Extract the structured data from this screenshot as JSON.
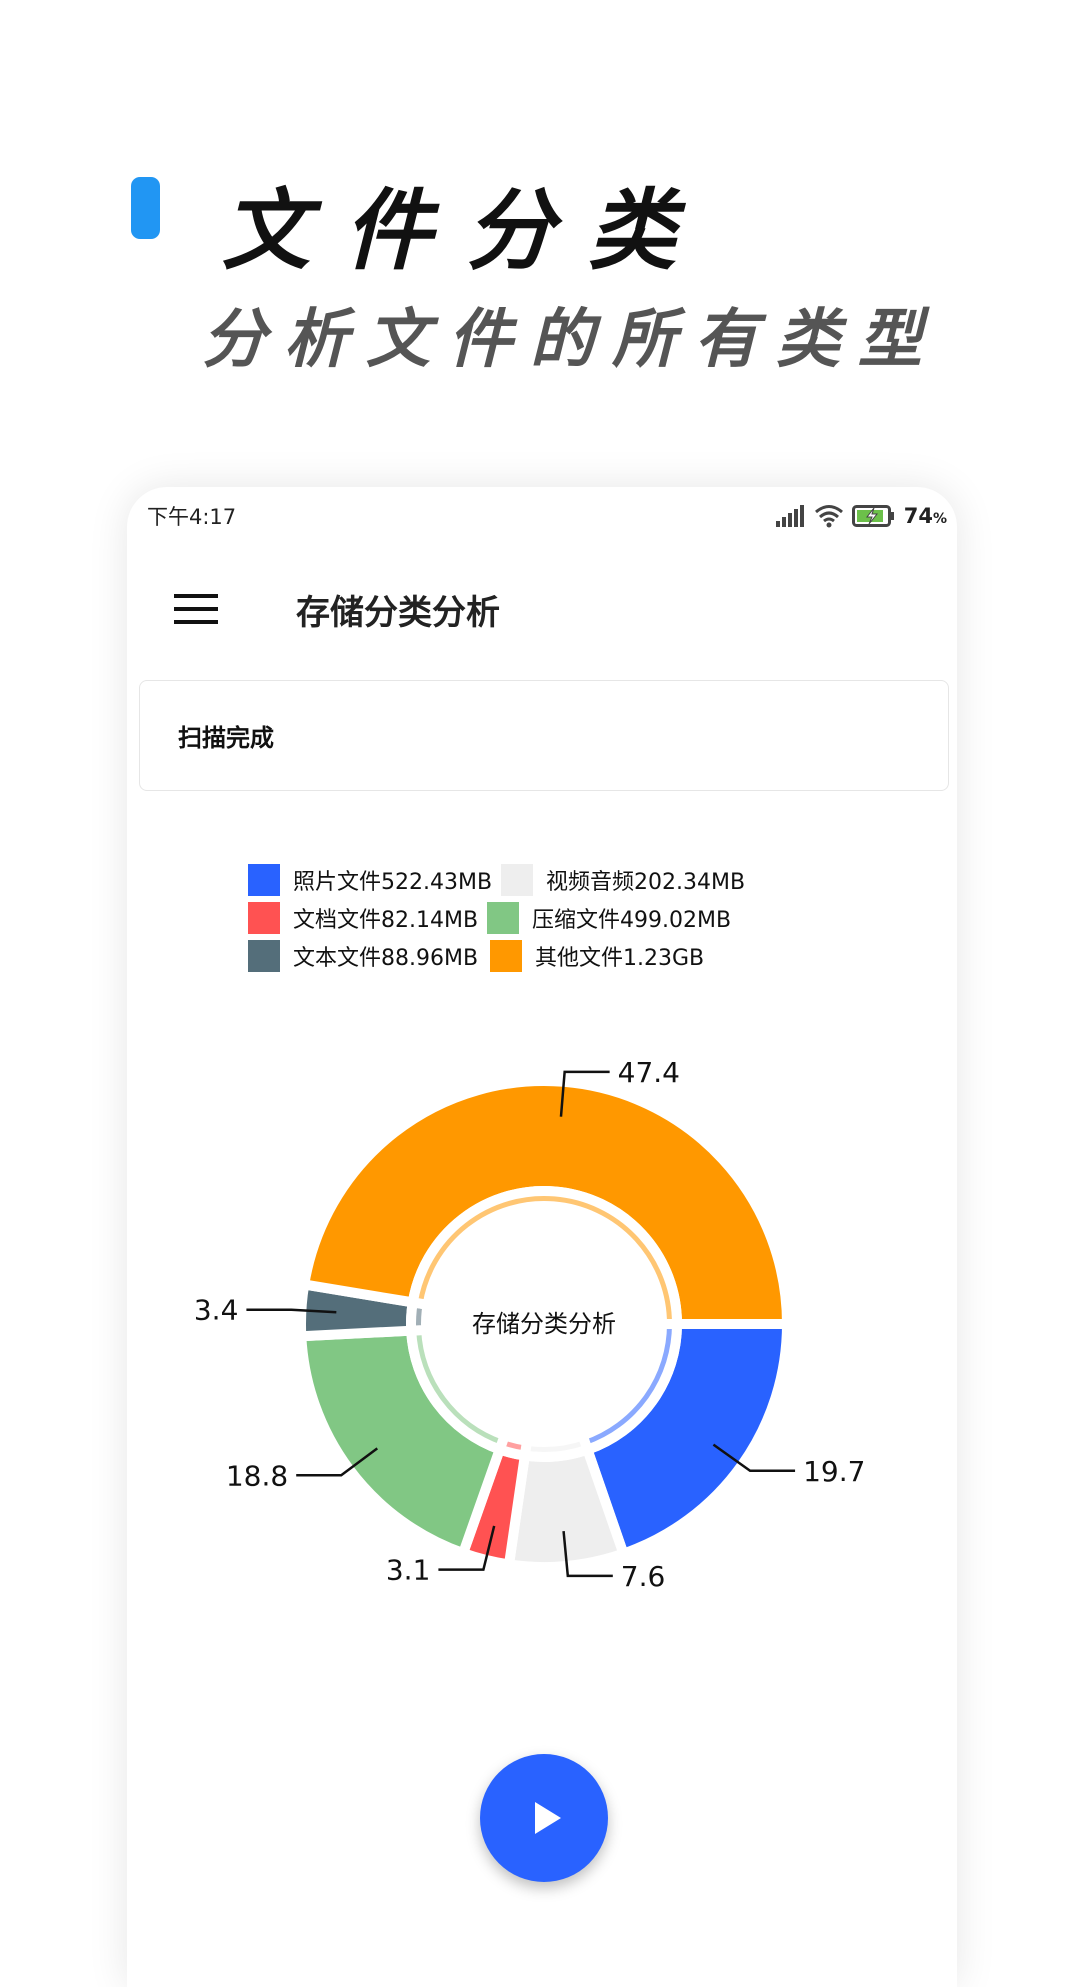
{
  "promo": {
    "title": "文件分类",
    "subtitle": "分析文件的所有类型",
    "accent_color": "#2196F3"
  },
  "status_bar": {
    "time": "下午4:17",
    "battery": "74",
    "battery_unit": "%"
  },
  "toolbar": {
    "title": "存储分类分析",
    "menu_icon": "hamburger-icon"
  },
  "scan_card": {
    "text": "扫描完成"
  },
  "legend": [
    {
      "label": "照片文件522.43MB",
      "color": "#2962FF"
    },
    {
      "label": "视频音频202.34MB",
      "color": "#EEEEEE"
    },
    {
      "label": "文档文件82.14MB",
      "color": "#FF5252"
    },
    {
      "label": "压缩文件499.02MB",
      "color": "#81C784"
    },
    {
      "label": "文本文件88.96MB",
      "color": "#546E7A"
    },
    {
      "label": "其他文件1.23GB",
      "color": "#FF9800"
    }
  ],
  "chart_data": {
    "type": "pie",
    "variant": "donut",
    "center_text": "存储分类分析",
    "categories": [
      "照片文件",
      "视频音频",
      "文档文件",
      "压缩文件",
      "文本文件",
      "其他文件"
    ],
    "values": [
      19.7,
      7.6,
      3.1,
      18.8,
      3.4,
      47.4
    ],
    "value_labels": [
      "19.7",
      "7.6",
      "3.1",
      "18.8",
      "3.4",
      "47.4"
    ],
    "colors": [
      "#2962FF",
      "#EEEEEE",
      "#FF5252",
      "#81C784",
      "#546E7A",
      "#FF9800"
    ]
  },
  "fab": {
    "icon": "play-icon"
  }
}
